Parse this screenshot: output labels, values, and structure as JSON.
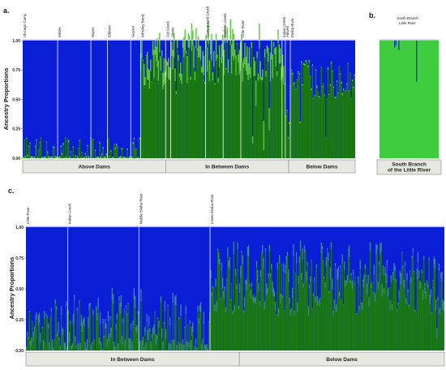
{
  "chart_data": [
    {
      "panel": "a.",
      "type": "bar",
      "ylabel": "Ancestry Proportions",
      "ylim": [
        0,
        1
      ],
      "yticks": [
        "0.00",
        "0.25",
        "0.50",
        "0.75",
        "1.00"
      ],
      "sites": [
        "Chicago Camp",
        "Wilder",
        "Hayes",
        "Elkhorn",
        "Geyser",
        "Whiskey Bend",
        "Cat Creek",
        "Altaire",
        "Campground Creek",
        "Madison Creek",
        "Little River",
        "Indian Creek",
        "Aldwell",
        "Elwha River"
      ],
      "site_bounds": [
        0.0,
        0.105,
        0.205,
        0.255,
        0.325,
        0.355,
        0.43,
        0.445,
        0.55,
        0.603,
        0.656,
        0.78,
        0.79,
        0.805,
        1.0
      ],
      "profile": [
        0.0,
        0.0,
        0.0,
        0.0,
        0.0,
        0.75,
        0.78,
        0.8,
        0.8,
        0.85,
        0.82,
        0.75,
        0.25,
        0.68
      ],
      "series": [
        {
          "name": "",
          "color": "#0a1ed6"
        },
        {
          "name": "",
          "color": "#1a7a10"
        },
        {
          "name": "",
          "color": "#5ec83c"
        }
      ],
      "groups": [
        {
          "label": "Above Dams",
          "span": [
            0.0,
            0.43
          ]
        },
        {
          "label": "In Between Dams",
          "span": [
            0.43,
            0.8
          ]
        },
        {
          "label": "Below Dams",
          "span": [
            0.8,
            1.0
          ]
        }
      ]
    },
    {
      "panel": "b.",
      "type": "bar",
      "ylim": [
        0,
        1
      ],
      "sites": [
        "South Branch",
        "Little River"
      ],
      "series": [
        {
          "name": "",
          "color": "#3fcc3f"
        },
        {
          "name": "",
          "color": "#0a1ed6"
        }
      ],
      "groups": [
        {
          "label": "South Branch of the Little River",
          "span": [
            0,
            1
          ]
        }
      ]
    },
    {
      "panel": "c.",
      "type": "bar",
      "ylabel": "Ancestry Proportions",
      "ylim": [
        0,
        1
      ],
      "yticks": [
        "0.00",
        "0.25",
        "0.50",
        "0.75",
        "1.00"
      ],
      "sites": [
        "Little River",
        "Indian Creek",
        "Middle Elwha River",
        "Lower Elwha River"
      ],
      "site_bounds": [
        0.0,
        0.1,
        0.27,
        0.44,
        1.0
      ],
      "profile": [
        0.15,
        0.15,
        0.15,
        0.55
      ],
      "series": [
        {
          "name": "",
          "color": "#0a1ed6"
        },
        {
          "name": "",
          "color": "#1a7a10"
        },
        {
          "name": "",
          "color": "#3a8c8c"
        }
      ],
      "groups": [
        {
          "label": "In Between Dams",
          "span": [
            0.0,
            0.51
          ]
        },
        {
          "label": "Below Dams",
          "span": [
            0.51,
            1.0
          ]
        }
      ]
    }
  ]
}
